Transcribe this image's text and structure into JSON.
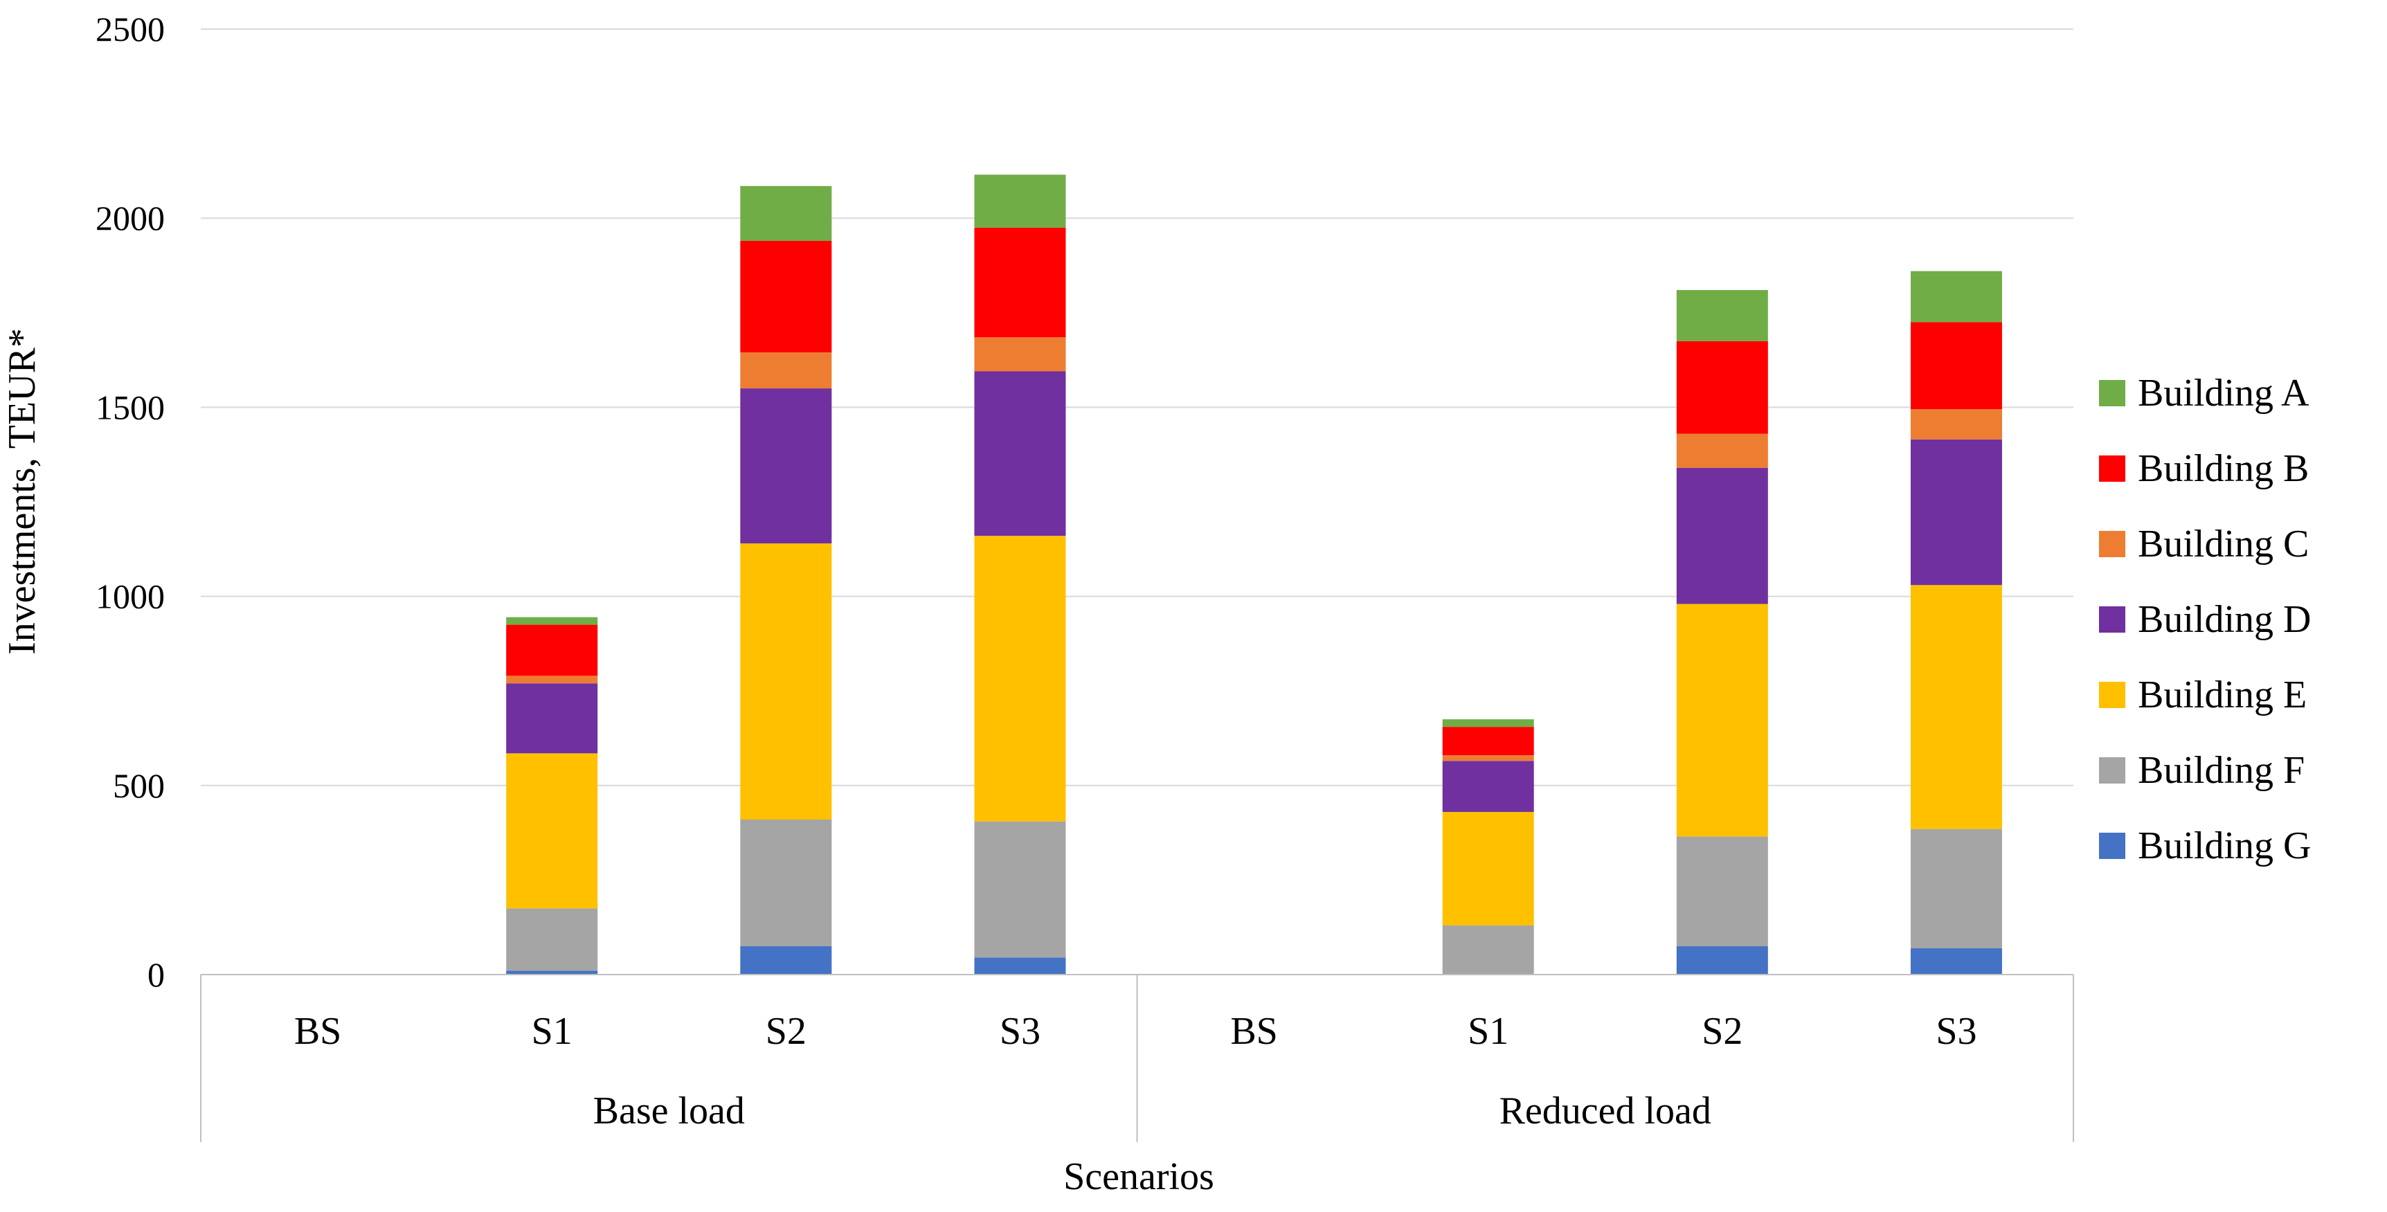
{
  "chart_data": {
    "type": "bar",
    "stacked": true,
    "title": "",
    "xlabel": "Scenarios",
    "ylabel": "Investments, TEUR*",
    "ylim": [
      0,
      2500
    ],
    "yticks": [
      0,
      500,
      1000,
      1500,
      2000,
      2500
    ],
    "grid": true,
    "legend_position": "right",
    "groups": [
      {
        "label": "Base load",
        "categories": [
          "BS",
          "S1",
          "S2",
          "S3"
        ]
      },
      {
        "label": "Reduced load",
        "categories": [
          "BS",
          "S1",
          "S2",
          "S3"
        ]
      }
    ],
    "series": [
      {
        "name": "Building G",
        "color": "#4472C4",
        "values": [
          0,
          10,
          75,
          45,
          0,
          0,
          75,
          70
        ]
      },
      {
        "name": "Building F",
        "color": "#A5A5A5",
        "values": [
          0,
          165,
          335,
          360,
          0,
          130,
          290,
          315
        ]
      },
      {
        "name": "Building E",
        "color": "#FFC000",
        "values": [
          0,
          410,
          730,
          755,
          0,
          300,
          615,
          645
        ]
      },
      {
        "name": "Building D",
        "color": "#7030A0",
        "values": [
          0,
          185,
          410,
          435,
          0,
          135,
          360,
          385
        ]
      },
      {
        "name": "Building C",
        "color": "#ED7D31",
        "values": [
          0,
          20,
          95,
          90,
          0,
          15,
          90,
          80
        ]
      },
      {
        "name": "Building B",
        "color": "#FF0000",
        "values": [
          0,
          135,
          295,
          290,
          0,
          75,
          245,
          230
        ]
      },
      {
        "name": "Building A",
        "color": "#70AD47",
        "values": [
          0,
          20,
          145,
          140,
          0,
          20,
          135,
          135
        ]
      }
    ]
  }
}
